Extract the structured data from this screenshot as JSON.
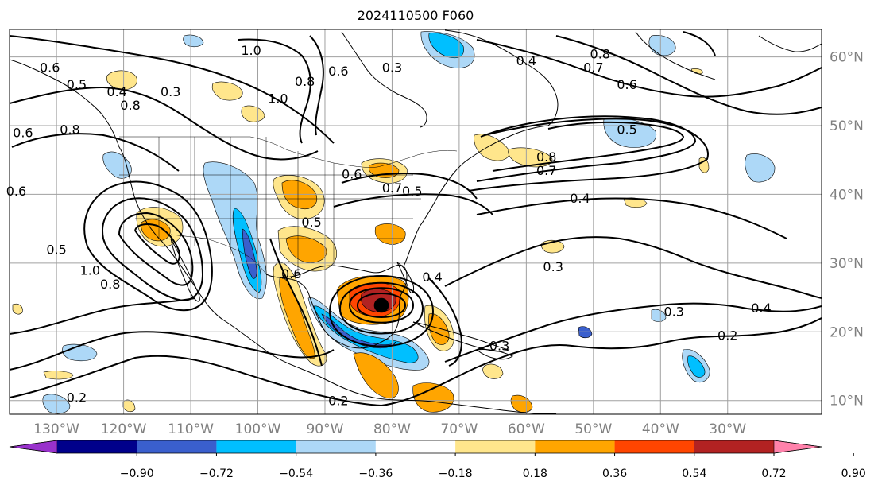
{
  "title": "2024110500 F060",
  "map": {
    "lon_range": [
      -137,
      -16
    ],
    "lat_range": [
      8,
      64
    ],
    "lat_labels": [
      "60°N",
      "50°N",
      "40°N",
      "30°N",
      "20°N",
      "10°N"
    ],
    "lat_values": [
      60,
      50,
      40,
      30,
      20,
      10
    ],
    "lon_labels": [
      "130°W",
      "120°W",
      "110°W",
      "100°W",
      "90°W",
      "80°W",
      "70°W",
      "60°W",
      "50°W",
      "40°W",
      "30°W"
    ],
    "lon_values": [
      -130,
      -120,
      -110,
      -100,
      -90,
      -80,
      -70,
      -60,
      -50,
      -40,
      -30
    ],
    "grid": true,
    "contour_labels": [
      {
        "text": "1.0",
        "lon": -101,
        "lat": 61
      },
      {
        "text": "0.6",
        "lon": -131,
        "lat": 58.5
      },
      {
        "text": "0.5",
        "lon": -127,
        "lat": 56
      },
      {
        "text": "0.3",
        "lon": -80,
        "lat": 58.5
      },
      {
        "text": "0.4",
        "lon": -60,
        "lat": 59.5
      },
      {
        "text": "0.7",
        "lon": -50,
        "lat": 58.5
      },
      {
        "text": "0.8",
        "lon": -49,
        "lat": 60.5
      },
      {
        "text": "0.6",
        "lon": -45,
        "lat": 56
      },
      {
        "text": "0.5",
        "lon": -45,
        "lat": 49.5
      },
      {
        "text": "0.7",
        "lon": -57,
        "lat": 43.5
      },
      {
        "text": "0.4",
        "lon": -52,
        "lat": 39.5
      },
      {
        "text": "0.3",
        "lon": -56,
        "lat": 29.5
      },
      {
        "text": "0.4",
        "lon": -74,
        "lat": 28
      },
      {
        "text": "0.3",
        "lon": -38,
        "lat": 23
      },
      {
        "text": "0.4",
        "lon": -25,
        "lat": 23.5
      },
      {
        "text": "0.2",
        "lon": -30,
        "lat": 19.5
      },
      {
        "text": "0.3",
        "lon": -64,
        "lat": 18
      },
      {
        "text": "0.2",
        "lon": -88,
        "lat": 10
      },
      {
        "text": "0.2",
        "lon": -127,
        "lat": 10.5
      },
      {
        "text": "0.6",
        "lon": -136,
        "lat": 40.5
      },
      {
        "text": "0.5",
        "lon": -130,
        "lat": 32
      },
      {
        "text": "1.0",
        "lon": -125,
        "lat": 29
      },
      {
        "text": "0.8",
        "lon": -122,
        "lat": 27
      },
      {
        "text": "0.5",
        "lon": -92,
        "lat": 36
      },
      {
        "text": "0.6",
        "lon": -95,
        "lat": 28.5
      },
      {
        "text": "0.6",
        "lon": -86,
        "lat": 43
      },
      {
        "text": "0.7",
        "lon": -80,
        "lat": 41
      },
      {
        "text": "0.5",
        "lon": -77,
        "lat": 40.5
      },
      {
        "text": "0.8",
        "lon": -57,
        "lat": 45.5
      },
      {
        "text": "0.8",
        "lon": -119,
        "lat": 53
      },
      {
        "text": "0.4",
        "lon": -121,
        "lat": 55
      },
      {
        "text": "0.3",
        "lon": -113,
        "lat": 55
      },
      {
        "text": "1.0",
        "lon": -97,
        "lat": 54
      },
      {
        "text": "0.8",
        "lon": -93,
        "lat": 56.5
      },
      {
        "text": "0.6",
        "lon": -88,
        "lat": 58
      },
      {
        "text": "0.6",
        "lon": -135,
        "lat": 49
      },
      {
        "text": "0.8",
        "lon": -128,
        "lat": 49.5
      }
    ]
  },
  "colorbar": {
    "ticks": [
      "−0.90",
      "−0.72",
      "−0.54",
      "−0.36",
      "−0.18",
      "0.18",
      "0.36",
      "0.54",
      "0.72",
      "0.90"
    ],
    "colors": [
      "#9932cc",
      "#00008b",
      "#3a5fcd",
      "#00bfff",
      "#add8f7",
      "#ffffff",
      "#ffe68c",
      "#ffa500",
      "#ff4500",
      "#b22222",
      "#ff82ab"
    ]
  },
  "colors": {
    "grid": "#a0a0a0",
    "coast": "#000000",
    "axis_text": "#808080"
  }
}
